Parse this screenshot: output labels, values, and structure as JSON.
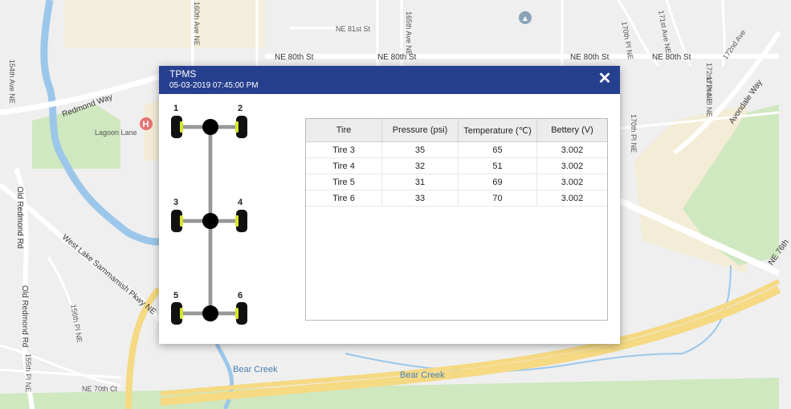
{
  "map": {
    "labels": {
      "ne_81st": "NE 81st St",
      "ne_80th_a": "NE 80th St",
      "ne_80th_b": "NE 80th St",
      "ne_80th_c": "NE 80th St",
      "ne_80th_d": "NE 80th St",
      "ave_160th": "160th Ave NE",
      "ave_165th": "165th Ave NE",
      "ave_154th": "154th Ave NE",
      "pl_170th": "170th Pl NE",
      "ave_171st": "171st Ave NE",
      "pl_172nd_a": "172nd Pl NE",
      "pl_172nd_b": "172nd Pl NE",
      "ave_172nd": "172nd Ave",
      "pl_170th_b": "170th Pl NE",
      "redmond_way": "Redmond Way",
      "lagoon_lane": "Lagoon Lane",
      "old_redmond": "Old Redmond Rd",
      "west_lake": "West Lake Sammamish Pkwy NE",
      "pl_156th": "156th Pl NE",
      "pl_155th": "155th Pl NE",
      "ne_70th": "NE 70th Ct",
      "bear_creek_a": "Bear Creek",
      "bear_creek_b": "Bear Creek",
      "avondale": "Avondale Way",
      "ne_76th": "NE 76th"
    }
  },
  "dialog": {
    "title": "TPMS",
    "subtitle": "05-03-2019 07:45:00 PM",
    "close_glyph": "✕"
  },
  "axles": {
    "tire_labels": [
      "1",
      "2",
      "3",
      "4",
      "5",
      "6"
    ]
  },
  "table": {
    "headers": [
      "Tire",
      "Pressure (psi)",
      "Temperature (℃)",
      "Bettery (V)"
    ],
    "rows": [
      [
        "Tire 3",
        "35",
        "65",
        "3.002"
      ],
      [
        "Tire 4",
        "32",
        "51",
        "3.002"
      ],
      [
        "Tire 5",
        "31",
        "69",
        "3.002"
      ],
      [
        "Tire 6",
        "33",
        "70",
        "3.002"
      ]
    ]
  },
  "colors": {
    "header": "#263f8f",
    "tire_rim": "#d8e62a",
    "water": "#9cc7ea",
    "highway": "#f5d983",
    "park": "#cfe8c0"
  }
}
